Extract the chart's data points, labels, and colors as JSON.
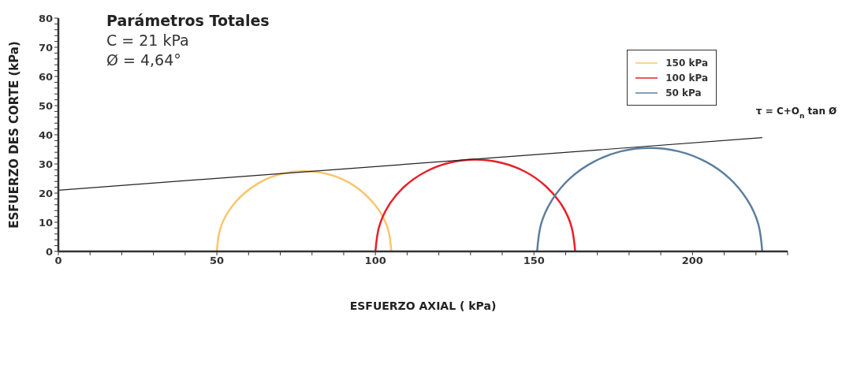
{
  "chart_data": {
    "type": "line",
    "title": "Parámetros Totales",
    "xlabel": "ESFUERZO AXIAL ( kPa)",
    "ylabel": "ESFUERZO DES CORTE (kPa)",
    "annotations": [
      "C = 21 kPa",
      "Ø = 4,64°",
      {
        "text": "τ = C+O$_{n}$  tan Ø",
        "x": 222,
        "y": 39
      }
    ],
    "legend": "top right",
    "xlim": [
      0,
      230
    ],
    "ylim": [
      0,
      80
    ],
    "xticks": [
      0,
      {
        "value": 10,
        "label": null
      },
      {
        "value": 20,
        "label": null
      },
      {
        "value": 30,
        "label": null
      },
      {
        "value": 40,
        "label": null
      },
      50,
      {
        "value": 60,
        "label": null
      },
      {
        "value": 70,
        "label": null
      },
      {
        "value": 80,
        "label": null
      },
      {
        "value": 90,
        "label": null
      },
      100,
      {
        "value": 110,
        "label": null
      },
      {
        "value": 120,
        "label": null
      },
      {
        "value": 130,
        "label": null
      },
      {
        "value": 140,
        "label": null
      },
      150,
      {
        "value": 160,
        "label": null
      },
      {
        "value": 170,
        "label": null
      },
      {
        "value": 180,
        "label": null
      },
      {
        "value": 190,
        "label": null
      },
      200,
      {
        "value": 210,
        "label": null
      },
      {
        "value": 220,
        "label": null
      },
      {
        "value": 230,
        "label": null
      }
    ],
    "yticks": [
      0,
      {
        "value": 2,
        "label": null
      },
      {
        "value": 4,
        "label": null
      },
      {
        "value": 6,
        "label": null
      },
      {
        "value": 8,
        "label": null
      },
      10,
      {
        "value": 12,
        "label": null
      },
      {
        "value": 14,
        "label": null
      },
      {
        "value": 16,
        "label": null
      },
      {
        "value": 18,
        "label": null
      },
      20,
      {
        "value": 22,
        "label": null
      },
      {
        "value": 24,
        "label": null
      },
      {
        "value": 26,
        "label": null
      },
      {
        "value": 28,
        "label": null
      },
      30,
      {
        "value": 32,
        "label": null
      },
      {
        "value": 34,
        "label": null
      },
      {
        "value": 36,
        "label": null
      },
      {
        "value": 38,
        "label": null
      },
      40,
      {
        "value": 42,
        "label": null
      },
      {
        "value": 44,
        "label": null
      },
      {
        "value": 46,
        "label": null
      },
      {
        "value": 48,
        "label": null
      },
      50,
      {
        "value": 52,
        "label": null
      },
      {
        "value": 54,
        "label": null
      },
      {
        "value": 56,
        "label": null
      },
      {
        "value": 58,
        "label": null
      },
      60,
      {
        "value": 62,
        "label": null
      },
      {
        "value": 64,
        "label": null
      },
      {
        "value": 66,
        "label": null
      },
      {
        "value": 68,
        "label": null
      },
      70,
      {
        "value": 72,
        "label": null
      },
      {
        "value": 74,
        "label": null
      },
      {
        "value": 76,
        "label": null
      },
      {
        "value": 78,
        "label": null
      },
      80
    ],
    "series": [
      {
        "name": "150 kPa",
        "color": "#f9c66f",
        "x": [
          50,
          50.9,
          53.7,
          58.1,
          63.8,
          70.4,
          77.5,
          84.6,
          91.3,
          96.9,
          101.3,
          104.1,
          105
        ],
        "values": [
          0,
          7.1,
          13.8,
          19.4,
          23.8,
          26.6,
          27.5,
          26.6,
          23.8,
          19.4,
          13.8,
          7.1,
          0
        ]
      },
      {
        "name": "100 kPa",
        "color": "#e8202a",
        "x": [
          100,
          101.1,
          104.2,
          109.2,
          115.8,
          123.3,
          131.5,
          139.7,
          147.3,
          153.8,
          158.8,
          161.9,
          163
        ],
        "values": [
          0,
          8.2,
          15.8,
          22.3,
          27.3,
          30.4,
          31.5,
          30.4,
          27.3,
          22.3,
          15.8,
          8.2,
          0
        ]
      },
      {
        "name": "50 kPa",
        "color": "#5b7f9e",
        "x": [
          151,
          152.2,
          155.8,
          161.4,
          168.8,
          177.3,
          186.5,
          195.7,
          204.3,
          211.6,
          217.2,
          220.8,
          222
        ],
        "values": [
          0,
          9.2,
          17.8,
          25.1,
          30.7,
          34.3,
          35.5,
          34.3,
          30.7,
          25.1,
          17.8,
          9.2,
          0
        ]
      },
      {
        "color": "#222222",
        "x": [
          0,
          222
        ],
        "values": [
          21,
          39
        ]
      }
    ]
  }
}
